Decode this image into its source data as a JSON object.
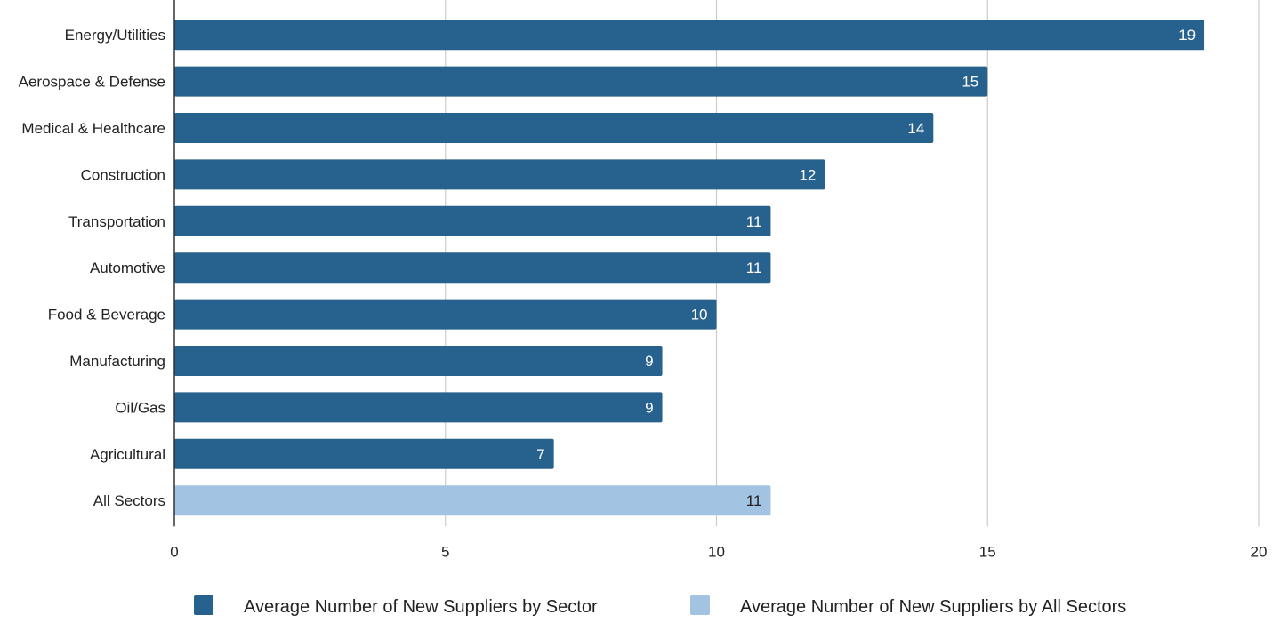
{
  "chart_data": {
    "type": "bar",
    "orientation": "horizontal",
    "title": "",
    "xlabel": "",
    "ylabel": "",
    "xlim": [
      0,
      20
    ],
    "xticks": [
      0,
      5,
      10,
      15,
      20
    ],
    "grid": true,
    "legend_position": "bottom",
    "categories": [
      "Energy/Utilities",
      "Aerospace & Defense",
      "Medical & Healthcare",
      "Construction",
      "Transportation",
      "Automotive",
      "Food & Beverage",
      "Manufacturing",
      "Oil/Gas",
      "Agricultural",
      "All Sectors"
    ],
    "values": [
      19,
      15,
      14,
      12,
      11,
      11,
      10,
      9,
      9,
      7,
      11
    ],
    "bar_series": [
      0,
      0,
      0,
      0,
      0,
      0,
      0,
      0,
      0,
      0,
      1
    ],
    "series": [
      {
        "name": "Average Number of New Suppliers by Sector",
        "color": "#27618e",
        "label_color": "#ffffff"
      },
      {
        "name": "Average Number of New Suppliers by All Sectors",
        "color": "#a3c3e3",
        "label_color": "#222222"
      }
    ],
    "colors": {
      "grid": "#cccccc",
      "axis": "#333333"
    }
  }
}
